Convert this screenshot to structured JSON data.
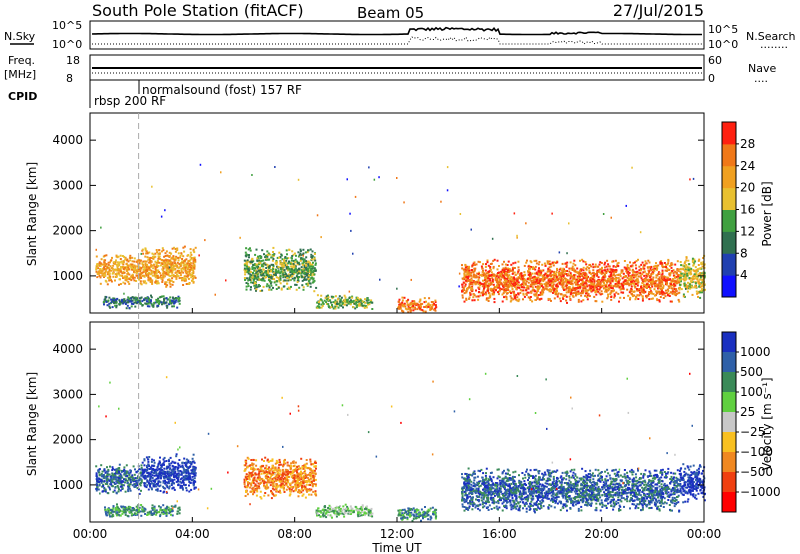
{
  "header": {
    "station": "South Pole Station (fitACF)",
    "beam": "Beam 05",
    "date": "27/Jul/2015"
  },
  "nsky_panel": {
    "left_label": "N.Sky",
    "right_label": "N.Search",
    "left_ticks": [
      "10^5",
      "10^0"
    ],
    "right_ticks": [
      "10^5",
      "10^0"
    ],
    "right_line_legend": "........"
  },
  "freq_panel": {
    "left_label_top": "Freq.",
    "left_label_bottom": "[MHz]",
    "right_label": "Nave",
    "left_ticks": [
      "18",
      "8"
    ],
    "right_ticks": [
      "60",
      "0"
    ],
    "right_line_legend": "...."
  },
  "cpid_panel": {
    "label": "CPID",
    "segments": [
      {
        "start_hour": 0.0,
        "end_hour": 1.9,
        "name": "rbsp 200 RF"
      },
      {
        "start_hour": 1.9,
        "end_hour": 24.0,
        "name": "normalsound (fost) 157 RF"
      }
    ]
  },
  "time_axis": {
    "label": "Time UT",
    "range_hours": [
      0,
      24
    ],
    "ticks": [
      "00:00",
      "04:00",
      "08:00",
      "12:00",
      "16:00",
      "20:00",
      "00:00"
    ],
    "tick_hours": [
      0,
      4,
      8,
      12,
      16,
      20,
      24
    ],
    "dashed_marker_hour": 1.9
  },
  "chart_data": [
    {
      "type": "heatmap",
      "name": "power-panel",
      "ylabel": "Slant Range [km]",
      "ylim": [
        180,
        4600
      ],
      "yticks": [
        1000,
        2000,
        3000,
        4000
      ],
      "colorbar_label": "Power [dB]",
      "colorbar_ticks": [
        "4",
        "8",
        "12",
        "16",
        "20",
        "24",
        "28"
      ],
      "colorbar_tick_values": [
        4,
        8,
        12,
        16,
        20,
        24,
        28
      ],
      "colorbar_range": [
        0,
        32
      ],
      "colors": [
        "#1010ff",
        "#2040b0",
        "#307050",
        "#40a040",
        "#e8c030",
        "#f0a020",
        "#f07818",
        "#ff2010"
      ],
      "clusters": [
        {
          "t0": 0.2,
          "t1": 2.0,
          "r0": 800,
          "r1": 1500,
          "level": 5
        },
        {
          "t0": 2.0,
          "t1": 4.1,
          "r0": 750,
          "r1": 1700,
          "level": 5
        },
        {
          "t0": 6.0,
          "t1": 8.8,
          "r0": 650,
          "r1": 1650,
          "level": 3
        },
        {
          "t0": 0.5,
          "t1": 3.5,
          "r0": 300,
          "r1": 600,
          "level": 2
        },
        {
          "t0": 8.8,
          "t1": 11.0,
          "r0": 280,
          "r1": 600,
          "level": 3
        },
        {
          "t0": 12.0,
          "t1": 13.5,
          "r0": 200,
          "r1": 550,
          "level": 6
        },
        {
          "t0": 14.5,
          "t1": 23.0,
          "r0": 400,
          "r1": 1400,
          "level": 6
        },
        {
          "t0": 23.0,
          "t1": 24.0,
          "r0": 500,
          "r1": 1500,
          "level": 4
        }
      ]
    },
    {
      "type": "heatmap",
      "name": "velocity-panel",
      "ylabel": "Slant Range [km]",
      "ylim": [
        180,
        4600
      ],
      "yticks": [
        1000,
        2000,
        3000,
        4000
      ],
      "colorbar_label": "Velocity [m s⁻¹]",
      "colorbar_ticks": [
        "1000",
        "500",
        "100",
        "25",
        "−25",
        "−100",
        "−500",
        "−1000"
      ],
      "colorbar_tick_values": [
        1000,
        500,
        100,
        25,
        -25,
        -100,
        -500,
        -1000
      ],
      "colors": [
        "#1a30c0",
        "#2f60a8",
        "#3a8a58",
        "#60d040",
        "#c8c8c8",
        "#f8c020",
        "#f08820",
        "#f04010",
        "#ff0000"
      ],
      "clusters": [
        {
          "t0": 0.2,
          "t1": 2.0,
          "r0": 800,
          "r1": 1500,
          "level": 1
        },
        {
          "t0": 2.0,
          "t1": 4.1,
          "r0": 800,
          "r1": 1700,
          "level": 0
        },
        {
          "t0": 6.0,
          "t1": 8.8,
          "r0": 700,
          "r1": 1650,
          "level": 6
        },
        {
          "t0": 0.5,
          "t1": 3.5,
          "r0": 300,
          "r1": 600,
          "level": 2
        },
        {
          "t0": 8.8,
          "t1": 11.0,
          "r0": 280,
          "r1": 600,
          "level": 3
        },
        {
          "t0": 12.0,
          "t1": 13.5,
          "r0": 200,
          "r1": 550,
          "level": 2
        },
        {
          "t0": 14.5,
          "t1": 23.0,
          "r0": 400,
          "r1": 1400,
          "level": 1
        },
        {
          "t0": 23.0,
          "t1": 24.0,
          "r0": 600,
          "r1": 1500,
          "level": 0
        }
      ]
    }
  ]
}
